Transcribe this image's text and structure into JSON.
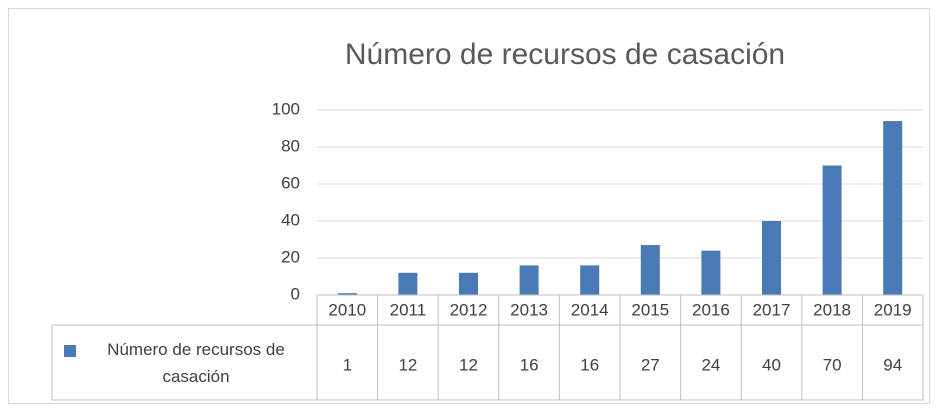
{
  "chart_data": {
    "type": "bar",
    "title": "Número de recursos de casación",
    "categories": [
      "2010",
      "2011",
      "2012",
      "2013",
      "2014",
      "2015",
      "2016",
      "2017",
      "2018",
      "2019"
    ],
    "series": [
      {
        "name": "Número de recursos de casación",
        "color": "#4a7ab5",
        "values": [
          1,
          12,
          12,
          16,
          16,
          27,
          24,
          40,
          70,
          94
        ]
      }
    ],
    "ylim": [
      0,
      100
    ],
    "yticks": [
      0,
      20,
      40,
      60,
      80,
      100
    ],
    "grid": true,
    "data_table": true
  }
}
